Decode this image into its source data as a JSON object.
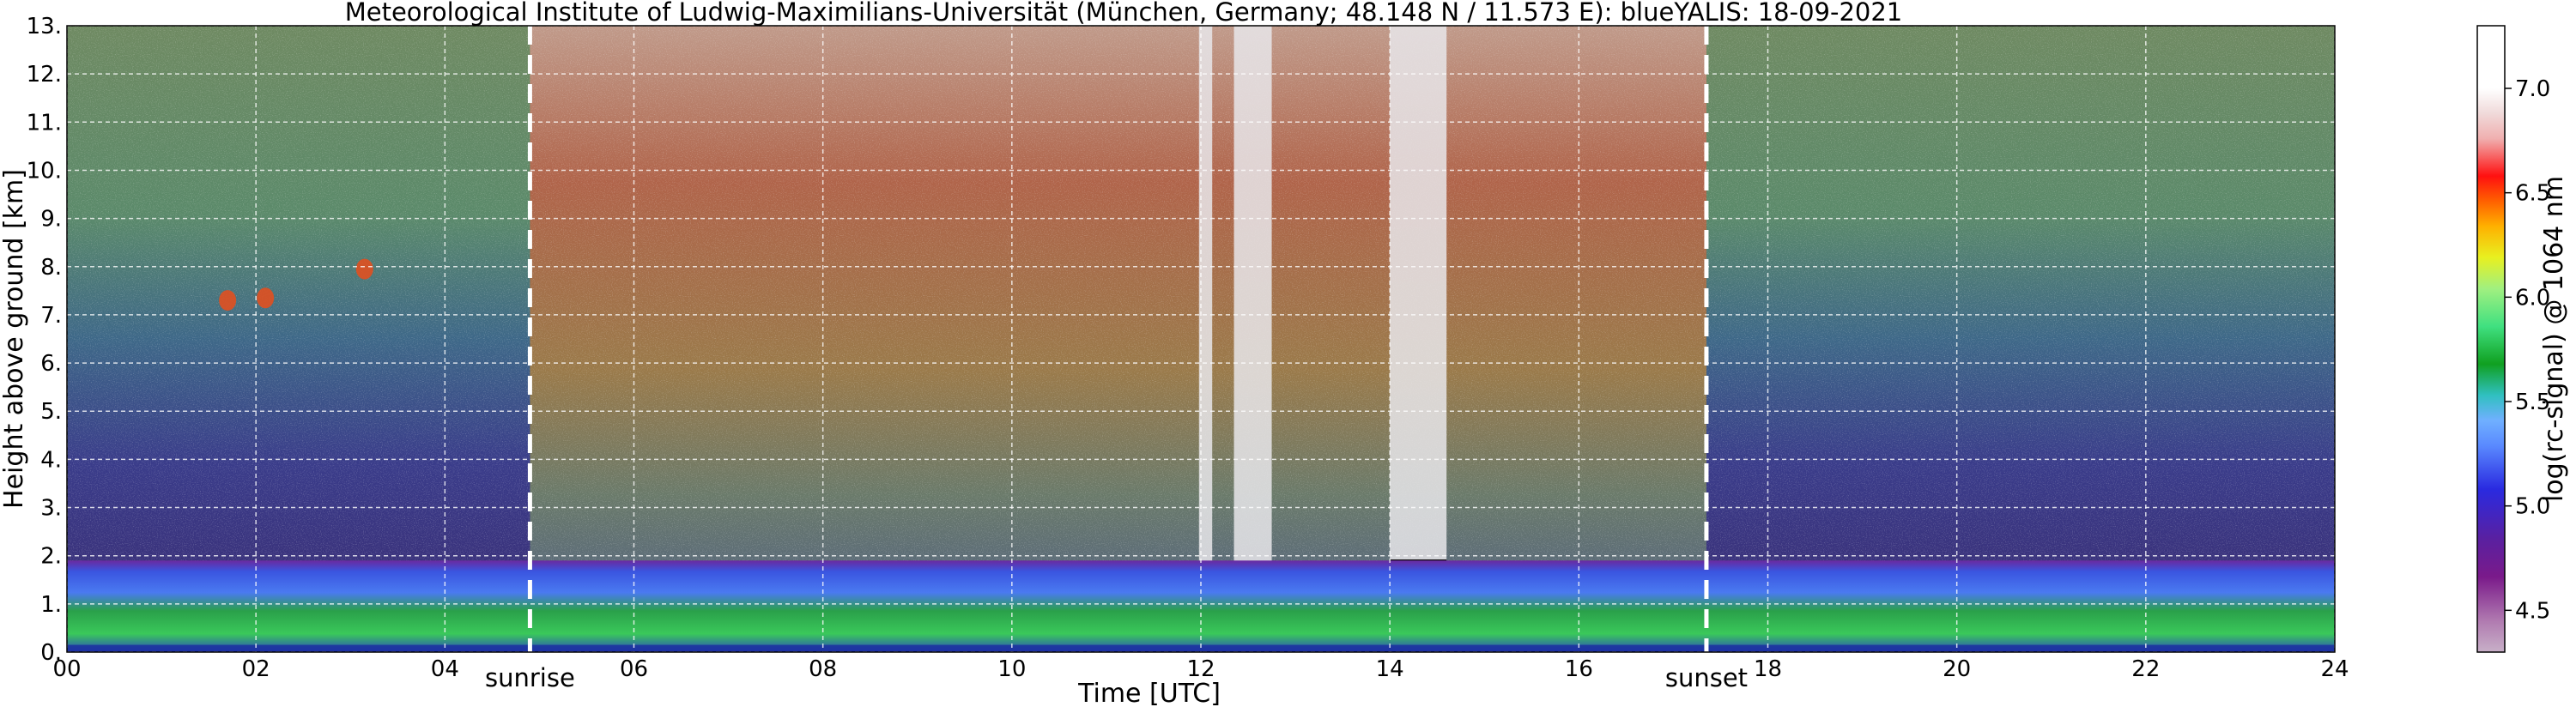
{
  "chart_data": {
    "type": "heatmap",
    "title": "Meteorological Institute of Ludwig-Maximilians-Universität (München, Germany; 48.148 N / 11.573 E):     blueYALIS: 18-09-2021",
    "xlabel": "Time [UTC]",
    "ylabel": "Height above ground [km]",
    "colorbar_label": "log(rc-signal) @ 1064 nm",
    "xlim": [
      0,
      24
    ],
    "ylim": [
      0,
      13
    ],
    "x_ticks": [
      "00",
      "02",
      "04",
      "06",
      "08",
      "10",
      "12",
      "14",
      "16",
      "18",
      "20",
      "22",
      "24"
    ],
    "y_ticks": [
      "0.",
      "1.",
      "2.",
      "3.",
      "4.",
      "5.",
      "6.",
      "7.",
      "8.",
      "9.",
      "10.",
      "11.",
      "12.",
      "13."
    ],
    "colorbar_range": [
      4.3,
      7.3
    ],
    "colorbar_ticks": [
      "4.5",
      "5.0",
      "5.5",
      "6.0",
      "6.5",
      "7.0"
    ],
    "grid": true,
    "events": [
      {
        "name": "sunrise",
        "time": 4.9
      },
      {
        "name": "sunset",
        "time": 17.35
      }
    ],
    "boundary_layer_top_km": 1.9,
    "cloud_layers": [
      {
        "start": 11.98,
        "end": 12.12,
        "base_km": 1.45
      },
      {
        "start": 12.35,
        "end": 12.75,
        "base_km": 1.6
      },
      {
        "start": 14.0,
        "end": 14.6,
        "base_km": 1.85
      }
    ],
    "elevated_features": [
      {
        "time": 1.7,
        "height_km": 7.3
      },
      {
        "time": 2.1,
        "height_km": 7.35
      },
      {
        "time": 3.15,
        "height_km": 7.95
      }
    ]
  }
}
